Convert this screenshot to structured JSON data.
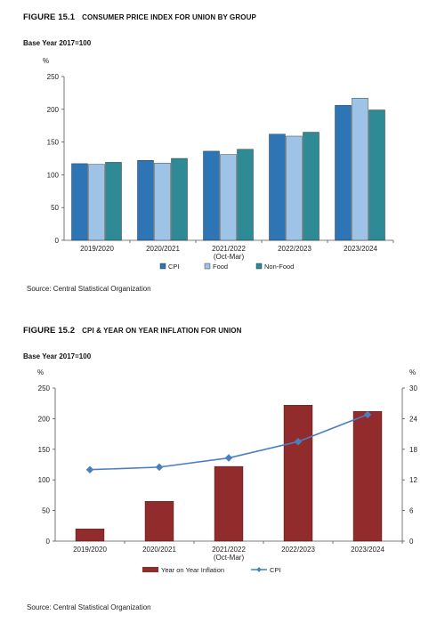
{
  "figure1": {
    "number": "FIGURE 15.1",
    "title": "CONSUMER PRICE INDEX FOR UNION BY GROUP",
    "base_year": "Base Year 2017=100",
    "unit": "%",
    "source": "Source: Central Statistical Organization"
  },
  "figure2": {
    "number": "FIGURE 15.2",
    "title": "CPI & YEAR ON YEAR INFLATION FOR UNION",
    "base_year": "Base Year 2017=100",
    "unit_left": "%",
    "unit_right": "%",
    "source": "Source: Central Statistical Organization"
  },
  "chart_data": [
    {
      "type": "bar",
      "categories": [
        "2019/2020",
        "2020/2021",
        "2021/2022\n(Oct-Mar)",
        "2022/2023",
        "2023/2024"
      ],
      "series": [
        {
          "name": "CPI",
          "values": [
            117,
            122,
            136,
            162,
            206
          ],
          "color": "#2e75b6"
        },
        {
          "name": "Food",
          "values": [
            116,
            118,
            131,
            159,
            217
          ],
          "color": "#9dc3e6"
        },
        {
          "name": "Non-Food",
          "values": [
            119,
            125,
            139,
            165,
            199
          ],
          "color": "#2e8b96"
        }
      ],
      "ylim": [
        0,
        250
      ],
      "yticks": [
        0,
        50,
        100,
        150,
        200,
        250
      ],
      "legend": "bottom",
      "grid": false
    },
    {
      "type": "bar",
      "categories": [
        "2019/2020",
        "2020/2021",
        "2021/2022\n(Oct-Mar)",
        "2022/2023",
        "2023/2024"
      ],
      "series": [
        {
          "name": "Year on Year Inflation",
          "type": "bar",
          "axis": "left",
          "values": [
            20,
            65,
            122,
            222,
            212
          ],
          "color": "#922b2b"
        },
        {
          "name": "CPI",
          "type": "line",
          "axis": "right",
          "values": [
            14,
            14.5,
            16.3,
            19.5,
            24.8
          ],
          "color": "#4a7ec0"
        }
      ],
      "ylim": [
        0,
        250
      ],
      "yticks": [
        0,
        50,
        100,
        150,
        200,
        250
      ],
      "y2lim": [
        0,
        30
      ],
      "y2ticks": [
        0,
        6,
        12,
        18,
        24,
        30
      ],
      "legend": "bottom",
      "grid": false
    }
  ]
}
